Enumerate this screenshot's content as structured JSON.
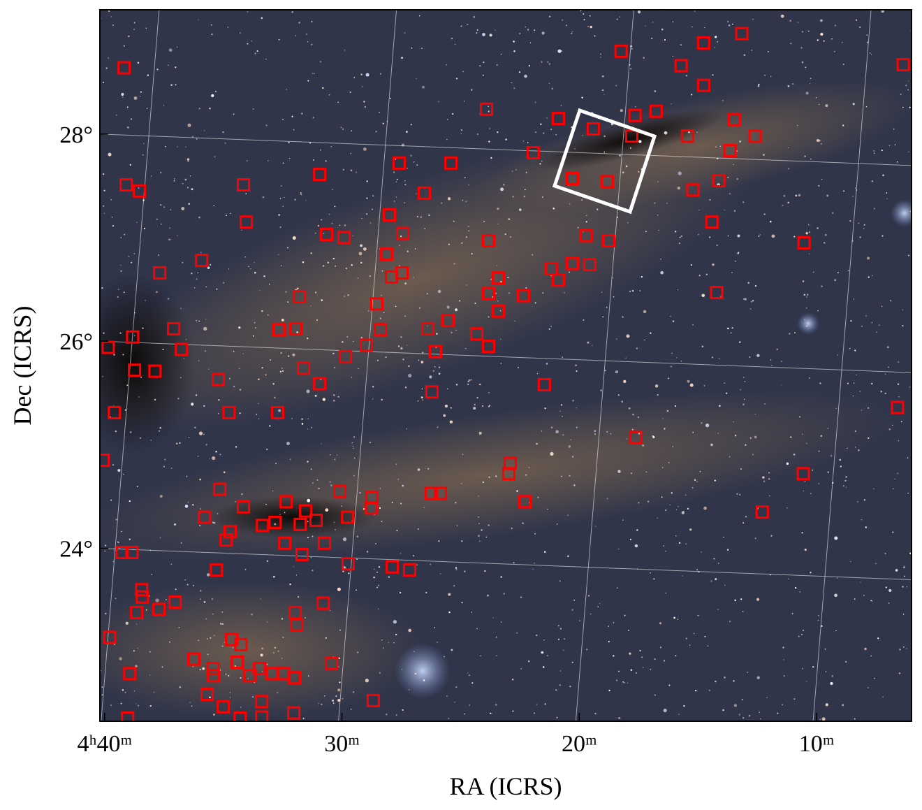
{
  "chart_data": {
    "type": "scatter",
    "marker": "square",
    "color": "#ff0000",
    "x_label": "RA (ICRS)",
    "y_label": "Dec (ICRS)",
    "xlim": [
      40.2,
      6.0
    ],
    "ylim": [
      22.33,
      29.2
    ],
    "xticks": [
      {
        "value": 40,
        "label": "4ʰ40ᵐ"
      },
      {
        "value": 30,
        "label": "30ᵐ"
      },
      {
        "value": 20,
        "label": "20ᵐ"
      },
      {
        "value": 10,
        "label": "10ᵐ"
      }
    ],
    "yticks": [
      {
        "value": 24,
        "label": "24°"
      },
      {
        "value": 26,
        "label": "26°"
      },
      {
        "value": 28,
        "label": "28°"
      }
    ],
    "grid": true,
    "x": [
      39.18,
      39.09,
      38.53,
      37.68,
      35.91,
      34.15,
      34.03,
      30.94,
      27.59,
      25.41,
      23.91,
      26.53,
      28.0,
      30.65,
      29.91,
      27.44,
      28.12,
      27.47,
      27.91,
      28.53,
      31.79,
      32.65,
      31.94,
      37.09,
      36.76,
      38.82,
      39.85,
      38.74,
      37.88,
      39.59,
      35.21,
      34.76,
      32.71,
      30.94,
      31.62,
      28.38,
      28.97,
      29.85,
      26.38,
      25.53,
      26.06,
      24.32,
      23.82,
      26.21,
      23.41,
      23.82,
      23.41,
      23.82,
      21.47,
      22.35,
      20.88,
      21.18,
      20.29,
      19.71,
      18.76,
      19.56,
      21.94,
      20.88,
      18.24,
      17.65,
      16.76,
      17.79,
      19.41,
      18.82,
      20.29,
      15.71,
      14.76,
      13.15,
      14.76,
      13.47,
      15.44,
      13.65,
      12.59,
      15.21,
      14.12,
      14.41,
      14.21,
      10.53,
      6.35,
      6.59,
      10.56,
      17.62,
      22.91,
      22.97,
      22.29,
      12.29,
      40.06,
      35.15,
      35.79,
      34.15,
      32.35,
      31.53,
      31.09,
      30.09,
      29.76,
      28.74,
      28.76,
      26.24,
      25.85,
      33.35,
      32.82,
      31.76,
      34.71,
      34.88,
      32.41,
      30.74,
      31.68,
      29.74,
      27.88,
      27.15,
      35.29,
      39.26,
      38.85,
      38.44,
      38.41,
      38.65,
      37.71,
      37.03,
      31.97,
      30.79,
      31.91,
      39.79,
      34.65,
      34.26,
      34.41,
      36.24,
      35.44,
      35.41,
      38.94,
      33.47,
      33.88,
      32.94,
      32.44,
      32.0,
      30.44,
      35.68,
      35.0,
      33.38,
      28.68,
      39.03,
      32.03,
      34.29,
      33.38
    ],
    "values": [
      28.64,
      27.51,
      27.45,
      26.66,
      26.78,
      27.51,
      27.15,
      27.61,
      27.72,
      27.72,
      28.24,
      27.43,
      27.22,
      27.03,
      27.0,
      27.04,
      26.84,
      26.66,
      26.62,
      26.36,
      26.43,
      26.11,
      26.12,
      26.12,
      25.92,
      26.04,
      25.94,
      25.72,
      25.71,
      25.31,
      25.63,
      25.31,
      25.31,
      25.59,
      25.74,
      26.11,
      25.96,
      25.85,
      26.12,
      26.2,
      25.9,
      26.07,
      25.95,
      25.51,
      26.29,
      26.46,
      26.61,
      26.97,
      25.58,
      26.44,
      26.59,
      26.7,
      26.75,
      27.02,
      26.97,
      26.74,
      27.82,
      28.15,
      28.8,
      28.18,
      28.22,
      27.98,
      28.05,
      27.54,
      27.57,
      28.66,
      28.88,
      28.97,
      28.47,
      28.14,
      27.98,
      27.84,
      27.98,
      27.46,
      27.55,
      27.15,
      26.47,
      26.95,
      28.67,
      25.36,
      24.72,
      25.07,
      24.82,
      24.72,
      24.45,
      24.35,
      24.85,
      24.57,
      24.3,
      24.4,
      24.45,
      24.36,
      24.27,
      24.55,
      24.3,
      24.49,
      24.39,
      24.53,
      24.53,
      24.22,
      24.25,
      24.23,
      24.16,
      24.08,
      24.05,
      24.05,
      23.94,
      23.85,
      23.82,
      23.79,
      23.79,
      23.96,
      23.96,
      23.6,
      23.53,
      23.38,
      23.41,
      23.48,
      23.38,
      23.47,
      23.26,
      23.14,
      23.12,
      23.07,
      22.9,
      22.93,
      22.84,
      22.77,
      22.79,
      22.84,
      22.77,
      22.79,
      22.79,
      22.75,
      22.89,
      22.59,
      22.47,
      22.52,
      22.53,
      22.36,
      22.41,
      22.36,
      22.37
    ]
  }
}
